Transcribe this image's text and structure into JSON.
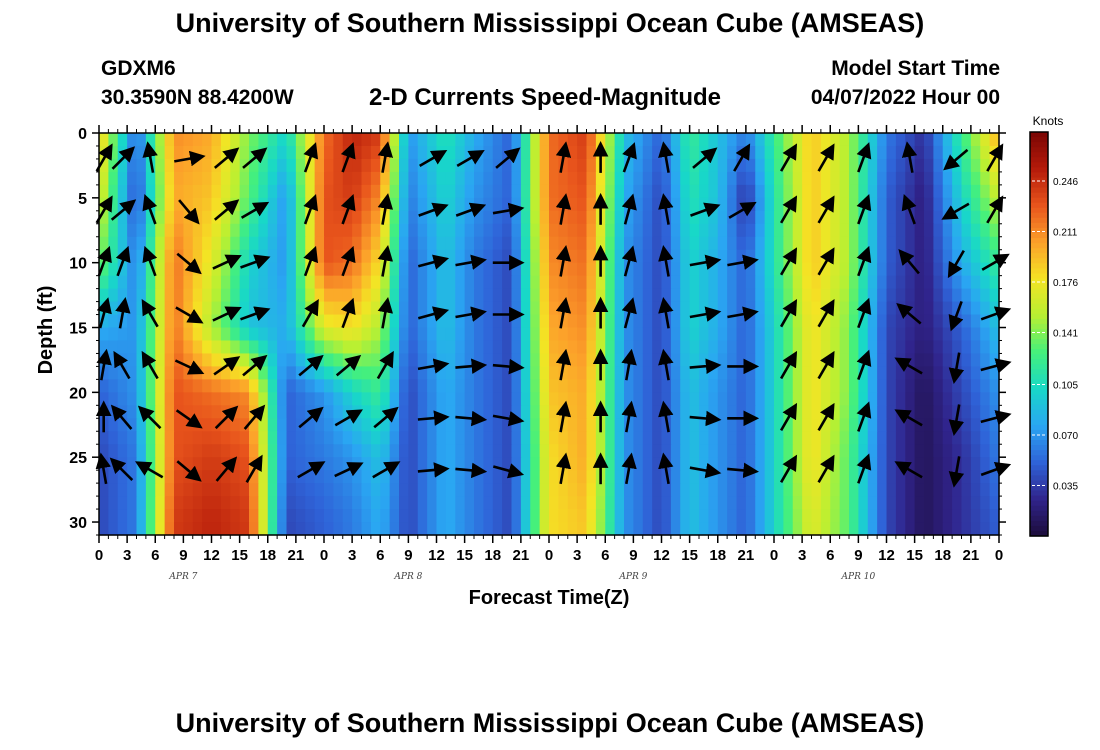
{
  "header": {
    "title": "University of Southern Mississippi Ocean Cube (AMSEAS)",
    "station": "GDXM6",
    "coords": "30.3590N  88.4200W",
    "plot_title": "2-D Currents Speed-Magnitude",
    "start_label": "Model Start Time",
    "start_date": "04/07/2022 Hour 00"
  },
  "footer": {
    "title": "University of Southern Mississippi Ocean Cube (AMSEAS)"
  },
  "chart_data": {
    "type": "heatmap",
    "title": "2-D Currents Speed-Magnitude",
    "xlabel": "Forecast Time(Z)",
    "ylabel": "Depth (ft)",
    "x_ticks": [
      "0",
      "3",
      "6",
      "9",
      "12",
      "15",
      "18",
      "21",
      "0",
      "3",
      "6",
      "9",
      "12",
      "15",
      "18",
      "21",
      "0",
      "3",
      "6",
      "9",
      "12",
      "15",
      "18",
      "21",
      "0",
      "3",
      "6",
      "9",
      "12",
      "15",
      "18",
      "21",
      "0"
    ],
    "x_hours": [
      0,
      96
    ],
    "day_labels": [
      {
        "label": "APR 7",
        "hour": 9
      },
      {
        "label": "APR 8",
        "hour": 33
      },
      {
        "label": "APR 9",
        "hour": 57
      },
      {
        "label": "APR 10",
        "hour": 81
      }
    ],
    "y_ticks": [
      0,
      5,
      10,
      15,
      20,
      25,
      30
    ],
    "ylim": [
      31,
      0
    ],
    "colorbar": {
      "label": "Knots",
      "ticks": [
        "0.246",
        "0.211",
        "0.176",
        "0.141",
        "0.105",
        "0.070",
        "0.035"
      ],
      "tick_values": [
        0.246,
        0.211,
        0.176,
        0.141,
        0.105,
        0.07,
        0.035
      ],
      "range": [
        0.0,
        0.28
      ],
      "colors": [
        "#1c0c3a",
        "#30248c",
        "#2f63d8",
        "#2aa6f2",
        "#18d8c8",
        "#45f07c",
        "#b8f032",
        "#f4e424",
        "#fca02a",
        "#e8541c",
        "#b41a0a",
        "#7a0604"
      ]
    },
    "profile_hours": [
      0,
      4,
      8,
      12,
      16,
      20,
      24,
      27,
      30,
      33,
      37,
      40,
      44,
      48,
      52,
      56,
      60,
      63,
      66,
      69,
      72,
      76,
      80,
      84,
      88,
      92,
      96
    ],
    "speed_profiles": [
      [
        0.19,
        0.05,
        0.21,
        0.2,
        0.14,
        0.1,
        0.22,
        0.25,
        0.24,
        0.07,
        0.11,
        0.08,
        0.05,
        0.22,
        0.24,
        0.09,
        0.05,
        0.12,
        0.09,
        0.06,
        0.12,
        0.19,
        0.15,
        0.06,
        0.03,
        0.12,
        0.2
      ],
      [
        0.17,
        0.04,
        0.2,
        0.19,
        0.13,
        0.07,
        0.23,
        0.24,
        0.21,
        0.06,
        0.1,
        0.07,
        0.05,
        0.22,
        0.23,
        0.08,
        0.04,
        0.11,
        0.09,
        0.03,
        0.11,
        0.19,
        0.15,
        0.05,
        0.02,
        0.1,
        0.16
      ],
      [
        0.14,
        0.06,
        0.22,
        0.17,
        0.1,
        0.07,
        0.23,
        0.22,
        0.18,
        0.05,
        0.09,
        0.06,
        0.04,
        0.21,
        0.22,
        0.07,
        0.04,
        0.1,
        0.08,
        0.05,
        0.11,
        0.19,
        0.15,
        0.05,
        0.02,
        0.08,
        0.12
      ],
      [
        0.08,
        0.07,
        0.22,
        0.15,
        0.09,
        0.08,
        0.17,
        0.18,
        0.15,
        0.05,
        0.09,
        0.06,
        0.04,
        0.2,
        0.21,
        0.07,
        0.04,
        0.1,
        0.08,
        0.05,
        0.1,
        0.18,
        0.14,
        0.04,
        0.02,
        0.05,
        0.09
      ],
      [
        0.05,
        0.07,
        0.23,
        0.22,
        0.21,
        0.05,
        0.07,
        0.1,
        0.12,
        0.04,
        0.08,
        0.06,
        0.04,
        0.19,
        0.2,
        0.07,
        0.04,
        0.09,
        0.07,
        0.05,
        0.1,
        0.18,
        0.14,
        0.04,
        0.01,
        0.04,
        0.07
      ],
      [
        0.04,
        0.06,
        0.23,
        0.24,
        0.23,
        0.05,
        0.06,
        0.07,
        0.09,
        0.04,
        0.08,
        0.06,
        0.04,
        0.18,
        0.2,
        0.07,
        0.04,
        0.09,
        0.07,
        0.05,
        0.1,
        0.18,
        0.13,
        0.04,
        0.01,
        0.03,
        0.06
      ],
      [
        0.04,
        0.06,
        0.24,
        0.25,
        0.24,
        0.04,
        0.05,
        0.06,
        0.08,
        0.04,
        0.08,
        0.06,
        0.04,
        0.18,
        0.19,
        0.07,
        0.04,
        0.09,
        0.07,
        0.05,
        0.1,
        0.17,
        0.13,
        0.04,
        0.01,
        0.03,
        0.05
      ]
    ],
    "profile_depths": [
      0,
      5,
      10,
      15,
      20,
      25,
      30
    ],
    "arrow_columns": [
      {
        "hour": 0.5,
        "a": [
          -60,
          -60,
          -70,
          -75,
          -80,
          -90,
          -100
        ]
      },
      {
        "hour": 2.5,
        "a": [
          -45,
          -40,
          -70,
          -80,
          -120,
          -130,
          -135
        ]
      },
      {
        "hour": 5.5,
        "a": [
          -100,
          -110,
          -110,
          -120,
          -120,
          -135,
          -150
        ]
      },
      {
        "hour": 9.5,
        "a": [
          -10,
          50,
          40,
          30,
          25,
          35,
          40
        ]
      },
      {
        "hour": 13.5,
        "a": [
          -40,
          -40,
          -25,
          -25,
          -35,
          -45,
          -50
        ]
      },
      {
        "hour": 16.5,
        "a": [
          -40,
          -30,
          -20,
          -20,
          -40,
          -50,
          -60
        ]
      },
      {
        "hour": 22.5,
        "a": [
          -70,
          -70,
          -70,
          -60,
          -40,
          -40,
          -30
        ]
      },
      {
        "hour": 26.5,
        "a": [
          -70,
          -70,
          -70,
          -70,
          -40,
          -30,
          -25
        ]
      },
      {
        "hour": 30.5,
        "a": [
          -80,
          -80,
          -80,
          -80,
          -60,
          -40,
          -30
        ]
      },
      {
        "hour": 35.5,
        "a": [
          -30,
          -20,
          -15,
          -15,
          -10,
          -5,
          -5
        ]
      },
      {
        "hour": 39.5,
        "a": [
          -30,
          -20,
          -10,
          -10,
          -5,
          5,
          5
        ]
      },
      {
        "hour": 43.5,
        "a": [
          -40,
          -10,
          0,
          0,
          5,
          10,
          15
        ]
      },
      {
        "hour": 49.5,
        "a": [
          -80,
          -80,
          -80,
          -80,
          -80,
          -80,
          -80
        ]
      },
      {
        "hour": 53.5,
        "a": [
          -90,
          -90,
          -90,
          -90,
          -90,
          -90,
          -90
        ]
      },
      {
        "hour": 56.5,
        "a": [
          -70,
          -75,
          -75,
          -75,
          -80,
          -80,
          -80
        ]
      },
      {
        "hour": 60.5,
        "a": [
          -100,
          -100,
          -100,
          -100,
          -100,
          -100,
          -100
        ]
      },
      {
        "hour": 64.5,
        "a": [
          -40,
          -20,
          -10,
          -10,
          -5,
          5,
          10
        ]
      },
      {
        "hour": 68.5,
        "a": [
          -60,
          -30,
          -10,
          -10,
          0,
          0,
          5
        ]
      },
      {
        "hour": 73.5,
        "a": [
          -60,
          -60,
          -60,
          -60,
          -60,
          -60,
          -60
        ]
      },
      {
        "hour": 77.5,
        "a": [
          -60,
          -60,
          -60,
          -60,
          -60,
          -60,
          -60
        ]
      },
      {
        "hour": 81.5,
        "a": [
          -70,
          -70,
          -70,
          -70,
          -70,
          -70,
          -70
        ]
      },
      {
        "hour": 86.5,
        "a": [
          -100,
          -110,
          -130,
          -140,
          -150,
          -150,
          -150
        ]
      },
      {
        "hour": 91.5,
        "a": [
          140,
          150,
          120,
          110,
          100,
          100,
          100
        ]
      },
      {
        "hour": 95.5,
        "a": [
          -60,
          -60,
          -30,
          -20,
          -15,
          -15,
          -20
        ]
      }
    ]
  }
}
